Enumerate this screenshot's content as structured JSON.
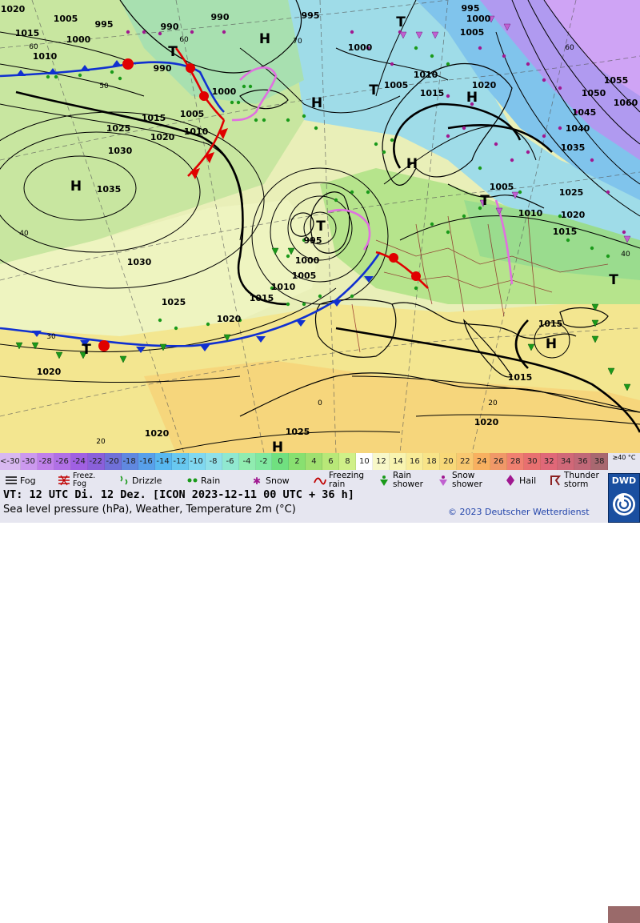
{
  "map": {
    "isobar_labels": [
      {
        "text": "1020"
      },
      {
        "text": "1005"
      },
      {
        "text": "995"
      },
      {
        "text": "990"
      },
      {
        "text": "990"
      },
      {
        "text": "995"
      },
      {
        "text": "995"
      },
      {
        "text": "1000"
      },
      {
        "text": "1005"
      },
      {
        "text": "1015"
      },
      {
        "text": "1000"
      },
      {
        "text": "1010"
      },
      {
        "text": "990"
      },
      {
        "text": "1000"
      },
      {
        "text": "1005"
      },
      {
        "text": "1010"
      },
      {
        "text": "1015"
      },
      {
        "text": "1020"
      },
      {
        "text": "1025"
      },
      {
        "text": "1030"
      },
      {
        "text": "1035"
      },
      {
        "text": "1000"
      },
      {
        "text": "1010"
      },
      {
        "text": "1015"
      },
      {
        "text": "1020"
      },
      {
        "text": "1005"
      },
      {
        "text": "1055"
      },
      {
        "text": "1050"
      },
      {
        "text": "1060"
      },
      {
        "text": "1045"
      },
      {
        "text": "1040"
      },
      {
        "text": "1035"
      },
      {
        "text": "1025"
      },
      {
        "text": "1020"
      },
      {
        "text": "1015"
      },
      {
        "text": "1005"
      },
      {
        "text": "1010"
      },
      {
        "text": "995"
      },
      {
        "text": "1000"
      },
      {
        "text": "1005"
      },
      {
        "text": "1010"
      },
      {
        "text": "1015"
      },
      {
        "text": "1030"
      },
      {
        "text": "1025"
      },
      {
        "text": "1020"
      },
      {
        "text": "1015"
      },
      {
        "text": "1015"
      },
      {
        "text": "1020"
      },
      {
        "text": "1020"
      },
      {
        "text": "1025"
      },
      {
        "text": "1020"
      }
    ],
    "pressure_centers": [
      {
        "text": "H"
      },
      {
        "text": "T"
      },
      {
        "text": "T"
      },
      {
        "text": "H"
      },
      {
        "text": "T"
      },
      {
        "text": "H"
      },
      {
        "text": "H"
      },
      {
        "text": "T"
      },
      {
        "text": "T"
      },
      {
        "text": "H"
      },
      {
        "text": "H"
      },
      {
        "text": "T"
      },
      {
        "text": "T"
      },
      {
        "text": "H"
      }
    ],
    "lat_labels": [
      {
        "text": "60"
      },
      {
        "text": "50"
      },
      {
        "text": "40"
      },
      {
        "text": "30"
      },
      {
        "text": "20"
      },
      {
        "text": "70"
      },
      {
        "text": "60"
      },
      {
        "text": "0"
      },
      {
        "text": "20"
      },
      {
        "text": "40"
      },
      {
        "text": "60"
      }
    ],
    "colors": {
      "ocean_cold": "#c9e6a0",
      "ocean_mid": "#e6f0b4",
      "warm_south": "#f3e48a",
      "hot_africa": "#f7d27a",
      "cold_north": "#8ad6e8",
      "very_cold": "#b7a0f0",
      "extreme_cold": "#d2a8f5",
      "isobar": "#000000",
      "warm_front": "#e00000",
      "cold_front": "#1030d0",
      "occlusion": "#e070e0",
      "border": "#8a2020",
      "coast": "#000000"
    }
  },
  "legend": {
    "temperature_scale": {
      "labels": [
        "<-30",
        "-30",
        "-28",
        "-26",
        "-24",
        "-22",
        "-20",
        "-18",
        "-16",
        "-14",
        "-12",
        "-10",
        "-8",
        "-6",
        "-4",
        "-2",
        "0",
        "2",
        "4",
        "6",
        "8",
        "10",
        "12",
        "14",
        "16",
        "18",
        "20",
        "22",
        "24",
        "26",
        "28",
        "30",
        "32",
        "34",
        "36",
        "38",
        "≥40 °C"
      ],
      "colors": [
        "#d8b8f0",
        "#cc99ee",
        "#c080ea",
        "#b070e6",
        "#a060e2",
        "#8a60da",
        "#7070d8",
        "#6088e0",
        "#58a0ea",
        "#58b8f0",
        "#68c8f0",
        "#80d8f0",
        "#90e0e8",
        "#90e8d0",
        "#90ecb0",
        "#80e8a0",
        "#70e080",
        "#88e070",
        "#a0e070",
        "#b8e878",
        "#d0f088",
        "#ffffff",
        "#f8f8c8",
        "#f8f4b0",
        "#f8ec98",
        "#f8e488",
        "#f8d878",
        "#f8c870",
        "#f8b060",
        "#f09868",
        "#f08070",
        "#e87070",
        "#e06878",
        "#d06878",
        "#c06878",
        "#a86870",
        "#9a6a6a"
      ]
    },
    "weather_symbols": [
      {
        "label": "Fog",
        "icon": "fog-icon"
      },
      {
        "label": "Freez.\nFog",
        "icon": "freezing-fog-icon"
      },
      {
        "label": "Drizzle",
        "icon": "drizzle-icon"
      },
      {
        "label": "Rain",
        "icon": "rain-icon"
      },
      {
        "label": "Snow",
        "icon": "snow-icon"
      },
      {
        "label": "Freezing\nrain",
        "icon": "freezing-rain-icon"
      },
      {
        "label": "Rain\nshower",
        "icon": "rain-shower-icon"
      },
      {
        "label": "Snow\nshower",
        "icon": "snow-shower-icon"
      },
      {
        "label": "Hail",
        "icon": "hail-icon"
      },
      {
        "label": "Thunder\nstorm",
        "icon": "thunderstorm-icon"
      }
    ],
    "valid_time": "VT: 12 UTC Di.  12 Dez. [ICON 2023-12-11  00 UTC + 36 h]",
    "description": "Sea level pressure (hPa), Weather, Temperature 2m (°C)",
    "copyright": "© 2023 Deutscher Wetterdienst",
    "logo_text": "DWD"
  }
}
